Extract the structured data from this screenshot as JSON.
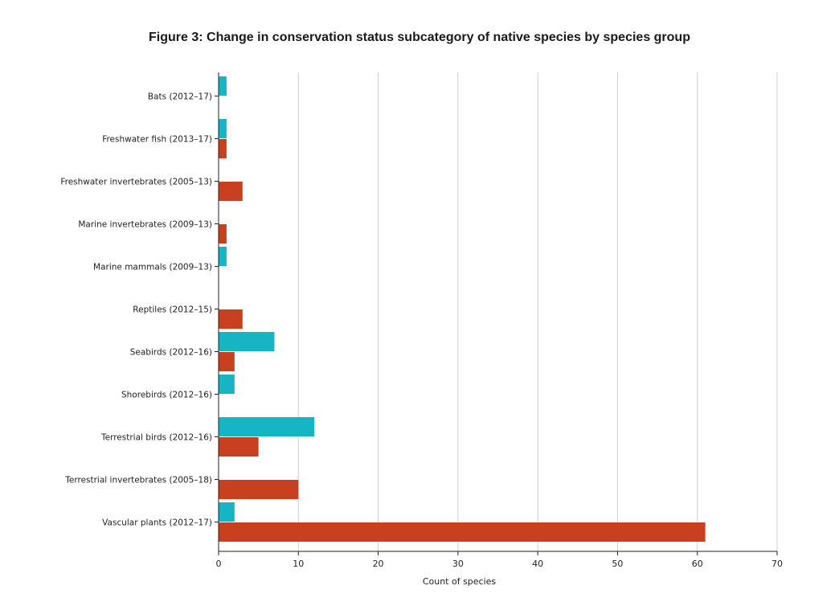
{
  "chart_data": {
    "type": "bar",
    "orientation": "horizontal",
    "title": "Figure 3: Change in conservation status subcategory of native species by species group",
    "xlabel": "Count of species",
    "ylabel": "",
    "xlim": [
      0,
      70
    ],
    "x_ticks": [
      0,
      10,
      20,
      30,
      40,
      50,
      60,
      70
    ],
    "grid": "vertical",
    "legend": "none",
    "categories": [
      "Bats (2012–17)",
      "Freshwater fish (2013–17)",
      "Freshwater invertebrates (2005–13)",
      "Marine invertebrates (2009–13)",
      "Marine mammals (2009–13)",
      "Reptiles (2012–15)",
      "Seabirds (2012–16)",
      "Shorebirds (2012–16)",
      "Terrestrial birds (2012–16)",
      "Terrestrial invertebrates (2005–18)",
      "Vascular plants (2012–17)"
    ],
    "series": [
      {
        "color": "#16b5c4",
        "values": [
          1,
          1,
          0,
          0,
          1,
          0,
          7,
          2,
          12,
          0,
          2
        ]
      },
      {
        "color": "#c8401f",
        "values": [
          0,
          1,
          3,
          1,
          0,
          3,
          2,
          0,
          5,
          10,
          61
        ]
      }
    ]
  }
}
